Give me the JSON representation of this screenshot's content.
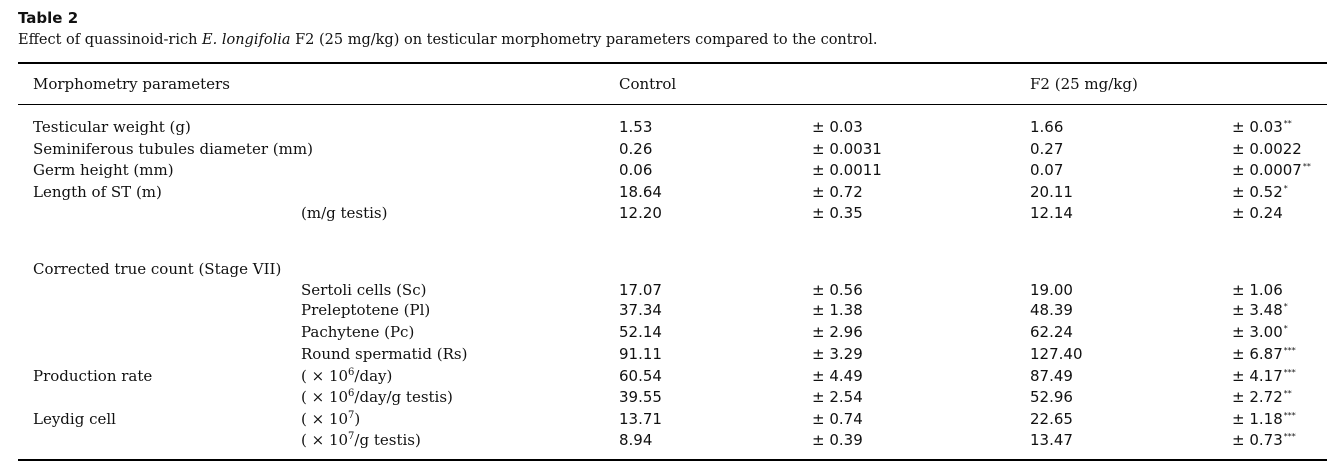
{
  "table_label": "Table 2",
  "caption": {
    "pre": "Effect of quassinoid-rich ",
    "italic": "E. longifolia",
    "post": " F2 (25 mg/kg) on testicular morphometry parameters compared to the control."
  },
  "columns": {
    "param": "Morphometry parameters",
    "control": "Control",
    "f2": "F2 (25 mg/kg)"
  },
  "rows": [
    {
      "label": "Testicular weight (g)",
      "sub": "",
      "c": "1.53",
      "c_sd": "± 0.03",
      "f": "1.66",
      "f_sd": "± 0.03",
      "sig": "**"
    },
    {
      "label": "Seminiferous tubules diameter (mm)",
      "sub": "",
      "c": "0.26",
      "c_sd": "± 0.0031",
      "f": "0.27",
      "f_sd": "± 0.0022",
      "sig": ""
    },
    {
      "label": "Germ height (mm)",
      "sub": "",
      "c": "0.06",
      "c_sd": "± 0.0011",
      "f": "0.07",
      "f_sd": "± 0.0007",
      "sig": "**"
    },
    {
      "label": "Length of ST (m)",
      "sub": "",
      "c": "18.64",
      "c_sd": "± 0.72",
      "f": "20.11",
      "f_sd": "± 0.52",
      "sig": "*"
    },
    {
      "label": "",
      "sub": "(m/g testis)",
      "c": "12.20",
      "c_sd": "± 0.35",
      "f": "12.14",
      "f_sd": "± 0.24",
      "sig": ""
    },
    {
      "label": "Corrected true count (Stage VII)",
      "sub": "",
      "c": "",
      "c_sd": "",
      "f": "",
      "f_sd": "",
      "sig": ""
    },
    {
      "label": "",
      "sub": "Sertoli cells (Sc)",
      "c": "17.07",
      "c_sd": "± 0.56",
      "f": "19.00",
      "f_sd": "± 1.06",
      "sig": ""
    },
    {
      "label": "",
      "sub": "Preleptotene (Pl)",
      "c": "37.34",
      "c_sd": "± 1.38",
      "f": "48.39",
      "f_sd": "± 3.48",
      "sig": "*"
    },
    {
      "label": "",
      "sub": "Pachytene (Pc)",
      "c": "52.14",
      "c_sd": "± 2.96",
      "f": "62.24",
      "f_sd": "± 3.00",
      "sig": "*"
    },
    {
      "label": "",
      "sub": "Round spermatid (Rs)",
      "c": "91.11",
      "c_sd": "± 3.29",
      "f": "127.40",
      "f_sd": "± 6.87",
      "sig": "***"
    },
    {
      "label": "Production rate",
      "sub_pre": "( × 10",
      "sub_exp": "6",
      "sub_post": "/day)",
      "c": "60.54",
      "c_sd": "± 4.49",
      "f": "87.49",
      "f_sd": "± 4.17",
      "sig": "***"
    },
    {
      "label": "",
      "sub_pre": "( × 10",
      "sub_exp": "6",
      "sub_post": "/day/g testis)",
      "c": "39.55",
      "c_sd": "± 2.54",
      "f": "52.96",
      "f_sd": "± 2.72",
      "sig": "**"
    },
    {
      "label": "Leydig cell",
      "sub_pre": "( × 10",
      "sub_exp": "7",
      "sub_post": ")",
      "c": "13.71",
      "c_sd": "± 0.74",
      "f": "22.65",
      "f_sd": "± 1.18",
      "sig": "***"
    },
    {
      "label": "",
      "sub_pre": "( × 10",
      "sub_exp": "7",
      "sub_post": "/g testis)",
      "c": "8.94",
      "c_sd": "± 0.39",
      "f": "13.47",
      "f_sd": "± 0.73",
      "sig": "***"
    }
  ]
}
